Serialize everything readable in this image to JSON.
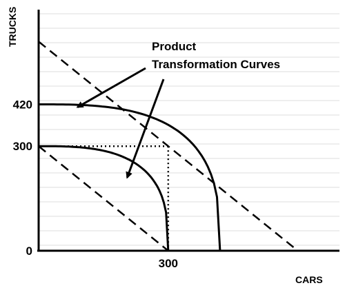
{
  "chart_data": {
    "type": "line",
    "title": "",
    "xlabel": "CARS",
    "ylabel": "TRUCKS",
    "grid": true,
    "x_ticks": [
      {
        "value": 300,
        "label": "300"
      }
    ],
    "y_ticks": [
      {
        "value": 0,
        "label": "0"
      },
      {
        "value": 300,
        "label": "300"
      },
      {
        "value": 420,
        "label": "420"
      }
    ],
    "xlim": [
      0,
      590
    ],
    "ylim": [
      0,
      590
    ],
    "series": [
      {
        "style": "solid",
        "curve": "concave",
        "x_intercept": 300,
        "y_intercept": 300
      },
      {
        "style": "solid",
        "curve": "concave",
        "x_intercept": 420,
        "y_intercept": 420
      },
      {
        "style": "dashed",
        "curve": "linear",
        "x": [
          0,
          300
        ],
        "y": [
          300,
          0
        ]
      },
      {
        "style": "dashed",
        "curve": "linear",
        "x": [
          0,
          600
        ],
        "y": [
          600,
          0
        ]
      }
    ],
    "reference_lines": [
      {
        "style": "dotted",
        "x": [
          0,
          300
        ],
        "y": [
          300,
          300
        ]
      },
      {
        "style": "dotted",
        "x": [
          300,
          300
        ],
        "y": [
          300,
          0
        ]
      }
    ],
    "annotations": [
      {
        "text_lines": [
          "Product",
          "Transformation Curves"
        ],
        "arrow_targets": [
          {
            "x": 90,
            "y": 412
          },
          {
            "x": 205,
            "y": 210
          }
        ]
      }
    ]
  }
}
